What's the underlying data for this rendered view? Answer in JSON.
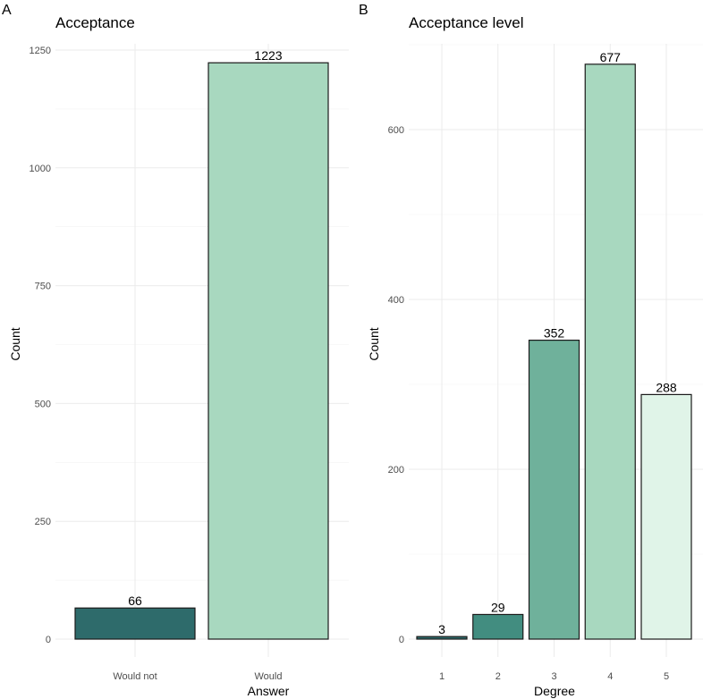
{
  "chart_data": [
    {
      "type": "bar",
      "tag": "A",
      "title": "Acceptance",
      "xlabel": "Answer",
      "ylabel": "Count",
      "categories": [
        "Would not",
        "Would"
      ],
      "values": [
        66,
        1223
      ],
      "colors": [
        "#2e6b6b",
        "#a8d8bf"
      ],
      "ylim": [
        0,
        1250
      ],
      "yticks": [
        0,
        250,
        500,
        750,
        1000,
        1250
      ],
      "grid": true,
      "legend": "none"
    },
    {
      "type": "bar",
      "tag": "B",
      "title": "Acceptance level",
      "xlabel": "Degree",
      "ylabel": "Count",
      "categories": [
        "1",
        "2",
        "3",
        "4",
        "5"
      ],
      "values": [
        3,
        29,
        352,
        677,
        288
      ],
      "colors": [
        "#2e6b6b",
        "#428d80",
        "#6fb19b",
        "#a8d8bf",
        "#e0f4e8"
      ],
      "ylim": [
        0,
        700
      ],
      "yticks": [
        0,
        200,
        400,
        600
      ],
      "grid": true,
      "legend": "none"
    }
  ]
}
